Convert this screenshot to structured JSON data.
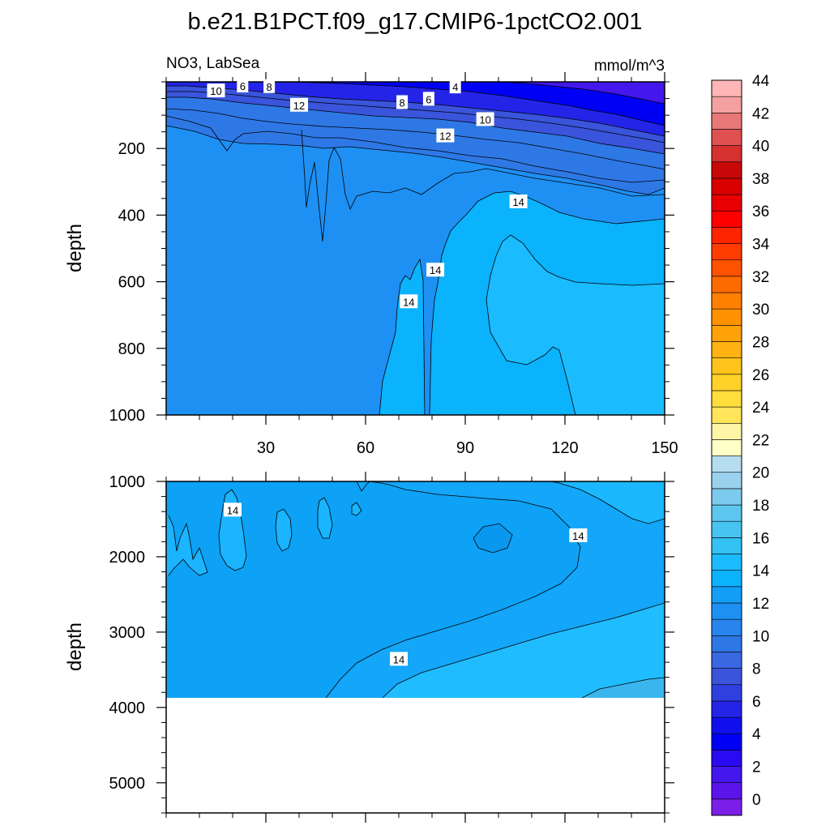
{
  "figure": {
    "title": "b.e21.B1PCT.f09_g17.CMIP6-1pctCO2.001",
    "left_string": "NO3, LabSea",
    "right_string": "mmol/m^3",
    "colors": {
      "b0": "#7b1fe8",
      "b2": "#4417ec",
      "b4": "#0000f5",
      "b6": "#2424e8",
      "b8": "#3a54dc",
      "b10": "#2e78e6",
      "b12": "#1e90f4",
      "b13": "#139ef8",
      "b14": "#0bb2fc",
      "b15": "#1bbcff",
      "b16": "#32c2f4",
      "b17": "#5cc6ef",
      "line": "#000000",
      "axis": "#000000"
    }
  },
  "chart_data": [
    {
      "type": "contour",
      "panel": "upper",
      "xlabel": "",
      "ylabel": "depth",
      "xlim": [
        0,
        150
      ],
      "ylim": [
        1000,
        0
      ],
      "xticks": [
        30,
        60,
        90,
        120,
        150
      ],
      "yticks": [
        200,
        400,
        600,
        800,
        1000
      ],
      "contour_labels": [
        {
          "value": "4",
          "x": 87,
          "depth": 15
        },
        {
          "value": "6",
          "x": 23,
          "depth": 12
        },
        {
          "value": "8",
          "x": 31,
          "depth": 14
        },
        {
          "value": "10",
          "x": 15,
          "depth": 27
        },
        {
          "value": "12",
          "x": 40,
          "depth": 70
        },
        {
          "value": "8",
          "x": 71,
          "depth": 62
        },
        {
          "value": "6",
          "x": 79,
          "depth": 52
        },
        {
          "value": "10",
          "x": 96,
          "depth": 113
        },
        {
          "value": "12",
          "x": 84,
          "depth": 162
        },
        {
          "value": "14",
          "x": 106,
          "depth": 360
        },
        {
          "value": "14",
          "x": 81,
          "depth": 565
        },
        {
          "value": "14",
          "x": 73,
          "depth": 660
        }
      ]
    },
    {
      "type": "contour",
      "panel": "lower",
      "xlabel": "",
      "ylabel": "depth",
      "xlim": [
        0,
        150
      ],
      "ylim": [
        5400,
        1000
      ],
      "data_bottom_depth": 3850,
      "xticks": [
        30,
        60,
        90,
        120,
        150
      ],
      "yticks": [
        1000,
        2000,
        3000,
        4000,
        5000
      ],
      "contour_labels": [
        {
          "value": "14",
          "x": 20,
          "depth": 1380
        },
        {
          "value": "14",
          "x": 124,
          "depth": 1720
        },
        {
          "value": "14",
          "x": 70,
          "depth": 3360
        }
      ]
    }
  ],
  "colorbar": {
    "labels": [
      "0",
      "2",
      "4",
      "6",
      "8",
      "10",
      "12",
      "14",
      "16",
      "18",
      "20",
      "22",
      "24",
      "26",
      "28",
      "30",
      "32",
      "34",
      "36",
      "38",
      "40",
      "42",
      "44"
    ],
    "colors": [
      "#7b1fe8",
      "#5b14ea",
      "#4417ec",
      "#2a0af2",
      "#0000f5",
      "#1010ee",
      "#2424e8",
      "#3040e0",
      "#3a54dc",
      "#3a68e2",
      "#2e78e6",
      "#2884ee",
      "#1e90f4",
      "#139ef8",
      "#0bb2fc",
      "#1bbcff",
      "#32c2f4",
      "#48c4f0",
      "#5cc6ef",
      "#7ccaee",
      "#9ad2ee",
      "#b6dcf0",
      "#ffffc8",
      "#fff5a6",
      "#ffe55a",
      "#ffde3c",
      "#ffd22a",
      "#ffc41c",
      "#ffb212",
      "#ffa20a",
      "#ff9200",
      "#ff8000",
      "#ff6a00",
      "#ff5200",
      "#ff3c00",
      "#ff2400",
      "#ff0000",
      "#e80000",
      "#d80000",
      "#c80808",
      "#d63030",
      "#e05050",
      "#e87878",
      "#f4a0a0",
      "#ffb6b6"
    ]
  }
}
